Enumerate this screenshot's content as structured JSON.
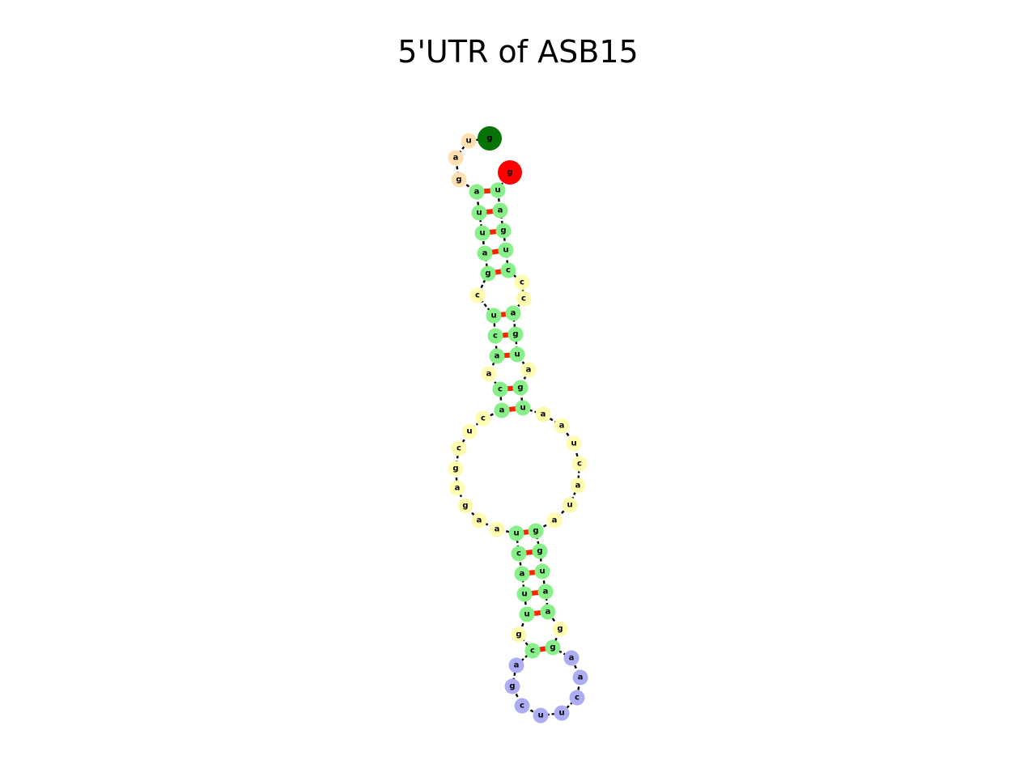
{
  "title": "5'UTR of ASB15",
  "colors": {
    "stem": "#88f088",
    "interior_loop": "#fffcb0",
    "hairpin_loop": "#adadf5",
    "dangling_5p": "#ffe0b0",
    "start_nt": "#067306",
    "end_nt": "#ff0000",
    "pair_bond": "#ff2200",
    "backbone": "#000000"
  },
  "sequence": [
    {
      "base": "g",
      "type": "start_nt"
    },
    {
      "base": "u",
      "type": "dangling_5p"
    },
    {
      "base": "a",
      "type": "dangling_5p"
    },
    {
      "base": "g",
      "type": "dangling_5p"
    },
    {
      "base": "a",
      "type": "stem"
    },
    {
      "base": "u",
      "type": "stem"
    },
    {
      "base": "u",
      "type": "stem"
    },
    {
      "base": "a",
      "type": "stem"
    },
    {
      "base": "g",
      "type": "stem"
    },
    {
      "base": "c",
      "type": "interior_loop"
    },
    {
      "base": "u",
      "type": "stem"
    },
    {
      "base": "c",
      "type": "stem"
    },
    {
      "base": "a",
      "type": "stem"
    },
    {
      "base": "a",
      "type": "interior_loop"
    },
    {
      "base": "c",
      "type": "stem"
    },
    {
      "base": "a",
      "type": "stem"
    },
    {
      "base": "c",
      "type": "interior_loop"
    },
    {
      "base": "u",
      "type": "interior_loop"
    },
    {
      "base": "c",
      "type": "interior_loop"
    },
    {
      "base": "g",
      "type": "interior_loop"
    },
    {
      "base": "a",
      "type": "interior_loop"
    },
    {
      "base": "g",
      "type": "interior_loop"
    },
    {
      "base": "a",
      "type": "interior_loop"
    },
    {
      "base": "a",
      "type": "interior_loop"
    },
    {
      "base": "u",
      "type": "stem"
    },
    {
      "base": "c",
      "type": "stem"
    },
    {
      "base": "a",
      "type": "stem"
    },
    {
      "base": "u",
      "type": "stem"
    },
    {
      "base": "u",
      "type": "stem"
    },
    {
      "base": "g",
      "type": "interior_loop"
    },
    {
      "base": "c",
      "type": "stem"
    },
    {
      "base": "a",
      "type": "hairpin_loop"
    },
    {
      "base": "g",
      "type": "hairpin_loop"
    },
    {
      "base": "c",
      "type": "hairpin_loop"
    },
    {
      "base": "u",
      "type": "hairpin_loop"
    },
    {
      "base": "u",
      "type": "hairpin_loop"
    },
    {
      "base": "c",
      "type": "hairpin_loop"
    },
    {
      "base": "a",
      "type": "hairpin_loop"
    },
    {
      "base": "a",
      "type": "hairpin_loop"
    },
    {
      "base": "g",
      "type": "stem"
    },
    {
      "base": "g",
      "type": "interior_loop"
    },
    {
      "base": "a",
      "type": "stem"
    },
    {
      "base": "a",
      "type": "stem"
    },
    {
      "base": "u",
      "type": "stem"
    },
    {
      "base": "g",
      "type": "stem"
    },
    {
      "base": "g",
      "type": "stem"
    },
    {
      "base": "a",
      "type": "interior_loop"
    },
    {
      "base": "u",
      "type": "interior_loop"
    },
    {
      "base": "a",
      "type": "interior_loop"
    },
    {
      "base": "c",
      "type": "interior_loop"
    },
    {
      "base": "u",
      "type": "interior_loop"
    },
    {
      "base": "a",
      "type": "interior_loop"
    },
    {
      "base": "a",
      "type": "interior_loop"
    },
    {
      "base": "u",
      "type": "stem"
    },
    {
      "base": "g",
      "type": "stem"
    },
    {
      "base": "a",
      "type": "interior_loop"
    },
    {
      "base": "u",
      "type": "stem"
    },
    {
      "base": "g",
      "type": "stem"
    },
    {
      "base": "a",
      "type": "stem"
    },
    {
      "base": "c",
      "type": "interior_loop"
    },
    {
      "base": "c",
      "type": "interior_loop"
    },
    {
      "base": "c",
      "type": "stem"
    },
    {
      "base": "u",
      "type": "stem"
    },
    {
      "base": "g",
      "type": "stem"
    },
    {
      "base": "a",
      "type": "stem"
    },
    {
      "base": "u",
      "type": "stem"
    },
    {
      "base": "g",
      "type": "end_nt"
    }
  ],
  "pairs": [
    [
      4,
      65
    ],
    [
      5,
      64
    ],
    [
      6,
      63
    ],
    [
      7,
      62
    ],
    [
      8,
      61
    ],
    [
      10,
      58
    ],
    [
      11,
      57
    ],
    [
      12,
      56
    ],
    [
      14,
      54
    ],
    [
      15,
      53
    ],
    [
      24,
      45
    ],
    [
      25,
      44
    ],
    [
      26,
      43
    ],
    [
      27,
      42
    ],
    [
      28,
      41
    ],
    [
      30,
      39
    ]
  ]
}
